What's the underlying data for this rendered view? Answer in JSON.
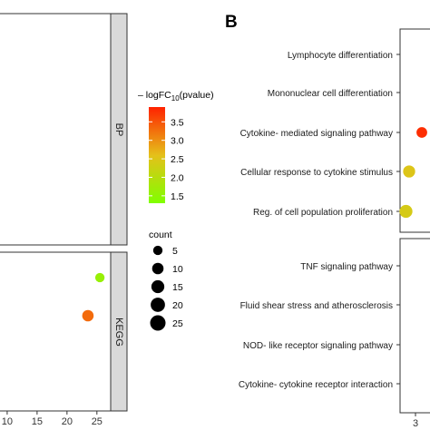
{
  "panel_b_label": "B",
  "colors": {
    "low": "#80ff00",
    "mid": "#e5c01a",
    "high": "#ff2200",
    "panel_border": "#333333",
    "strip_fill": "#d9d9d9"
  },
  "chart_data": [
    {
      "panel": "A",
      "type": "scatter",
      "x_ticks": [
        "10",
        "15",
        "20",
        "25"
      ],
      "xlim": [
        8.8,
        27
      ],
      "facets": [
        {
          "label": "BP",
          "points": []
        },
        {
          "label": "KEGG",
          "points": [
            {
              "x": 25.5,
              "color_value": 1.6,
              "count": 5
            },
            {
              "x": 23.5,
              "color_value": 3.3,
              "count": 10
            }
          ]
        }
      ]
    },
    {
      "panel": "B",
      "type": "scatter",
      "x_ticks": [
        "3"
      ],
      "facets": [
        {
          "label": "",
          "categories": [
            "Lymphocyte differentiation",
            "Mononuclear cell differentiation",
            "Cytokine- mediated signaling pathway",
            "Cellular response to cytokine stimulus",
            "Reg. of cell population proliferation"
          ],
          "points": [
            {
              "category": "Cytokine- mediated signaling pathway",
              "x": 3.1,
              "color_value": 3.8,
              "count": 8
            },
            {
              "category": "Cellular response to cytokine stimulus",
              "x": 2.9,
              "color_value": 2.5,
              "count": 12
            },
            {
              "category": "Reg. of cell population proliferation",
              "x": 2.85,
              "color_value": 2.4,
              "count": 15
            }
          ]
        },
        {
          "label": "",
          "categories": [
            "TNF signaling pathway",
            "Fluid shear stress and atherosclerosis",
            "NOD- like receptor signaling pathway",
            "Cytokine- cytokine receptor interaction"
          ],
          "points": []
        }
      ]
    }
  ],
  "legend": {
    "color_title_prefix": "– logFC",
    "color_title_sub": "10",
    "color_title_suffix": "(pvalue)",
    "color_range": [
      1.3,
      3.9
    ],
    "color_ticks": [
      "3.5",
      "3.0",
      "2.5",
      "2.0",
      "1.5"
    ],
    "size_title": "count",
    "size_values": [
      "5",
      "10",
      "15",
      "20",
      "25"
    ]
  }
}
